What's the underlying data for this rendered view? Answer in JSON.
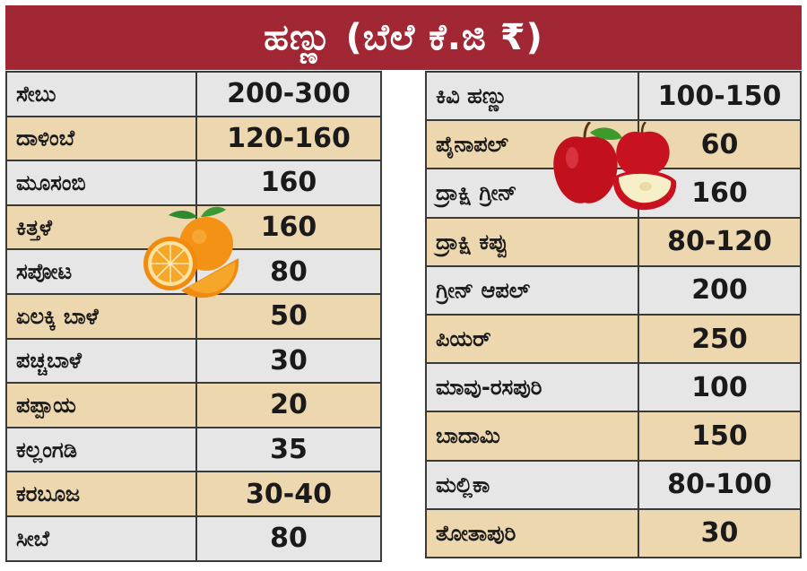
{
  "title": "ಹಣ್ಣು (ಬೆಲೆ ಕೆ.ಜಿ ₹)",
  "colors": {
    "title_bg": "#a02733",
    "row_gray": "#e6e6e6",
    "row_tan": "#ecd7af",
    "border": "#3a3a3a"
  },
  "left_table": [
    {
      "name": "ಸೇಬು",
      "price": "200-300"
    },
    {
      "name": "ದಾಳಿಂಬೆ",
      "price": "120-160"
    },
    {
      "name": "ಮೂಸಂಬಿ",
      "price": "160"
    },
    {
      "name": "ಕಿತ್ತಳೆ",
      "price": "160"
    },
    {
      "name": "ಸಪೋಟ",
      "price": "80"
    },
    {
      "name": "ಏಲಕ್ಕಿ ಬಾಳೆ",
      "price": "50"
    },
    {
      "name": "ಪಚ್ಚಬಾಳೆ",
      "price": "30"
    },
    {
      "name": "ಪಪ್ಪಾಯ",
      "price": "20"
    },
    {
      "name": "ಕಲ್ಲಂಗಡಿ",
      "price": "35"
    },
    {
      "name": "ಕರಬೂಜ",
      "price": "30-40"
    },
    {
      "name": "ಸೀಬೆ",
      "price": "80"
    }
  ],
  "right_table": [
    {
      "name": "ಕಿವಿ ಹಣ್ಣು",
      "price": "100-150"
    },
    {
      "name": "ಪೈನಾಪಲ್",
      "price": "60"
    },
    {
      "name": "ದ್ರಾಕ್ಷಿ ಗ್ರೀನ್",
      "price": "160"
    },
    {
      "name": "ದ್ರಾಕ್ಷಿ ಕಪ್ಪು",
      "price": "80-120"
    },
    {
      "name": "ಗ್ರೀನ್ ಆಪಲ್",
      "price": "200"
    },
    {
      "name": "ಪಿಯರ್",
      "price": "250"
    },
    {
      "name": "ಮಾವು-ರಸಪುರಿ",
      "price": "100"
    },
    {
      "name": "ಬಾದಾಮಿ",
      "price": "150"
    },
    {
      "name": "ಮಲ್ಲಿಕಾ",
      "price": "80-100"
    },
    {
      "name": "ತೋತಾಪುರಿ",
      "price": "30"
    }
  ],
  "images": {
    "oranges": "orange-fruit-icon",
    "apples": "apple-fruit-icon"
  }
}
